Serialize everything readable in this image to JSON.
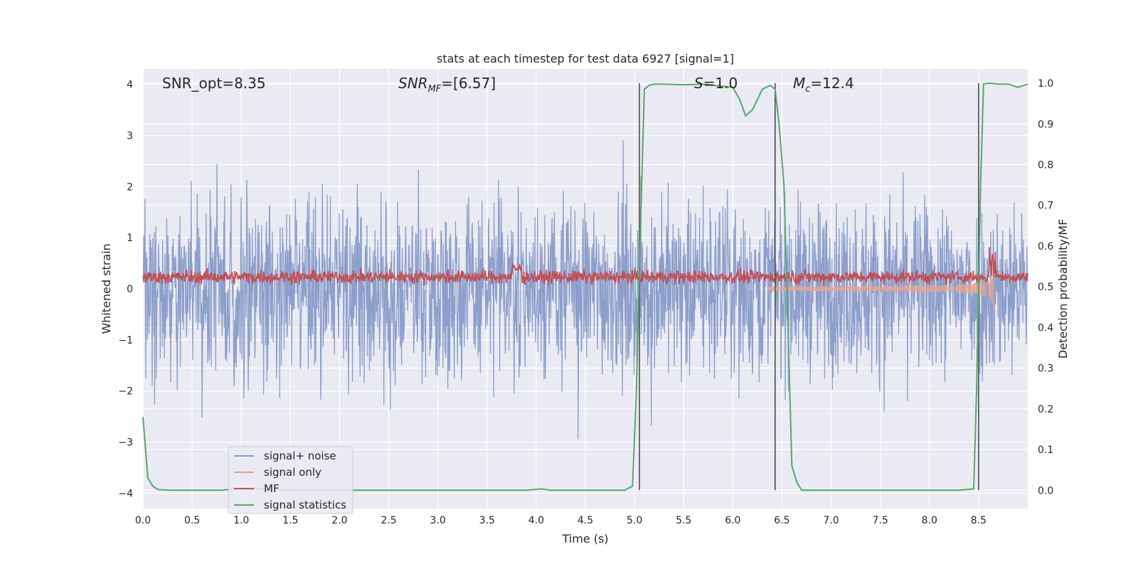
{
  "chart_data": {
    "type": "line",
    "title": "stats at each timestep for test data 6927 [signal=1]",
    "xlabel": "Time (s)",
    "ylabel": "Whitened strain",
    "y2label": "Detection probability/MF",
    "xlim": [
      0.0,
      9.0
    ],
    "ylim": [
      -4.3,
      4.3
    ],
    "y2lim": [
      -0.045,
      1.035
    ],
    "xticks": [
      0.0,
      0.5,
      1.0,
      1.5,
      2.0,
      2.5,
      3.0,
      3.5,
      4.0,
      4.5,
      5.0,
      5.5,
      6.0,
      6.5,
      7.0,
      7.5,
      8.0,
      8.5
    ],
    "xtick_labels": [
      "0.0",
      "0.5",
      "1.0",
      "1.5",
      "2.0",
      "2.5",
      "3.0",
      "3.5",
      "4.0",
      "4.5",
      "5.0",
      "5.5",
      "6.0",
      "6.5",
      "7.0",
      "7.5",
      "8.0",
      "8.5"
    ],
    "yticks": [
      4,
      3,
      2,
      1,
      0,
      -1,
      -2,
      -3,
      -4
    ],
    "ytick_labels": [
      "4",
      "3",
      "2",
      "1",
      "0",
      "−1",
      "−2",
      "−3",
      "−4"
    ],
    "y2ticks": [
      1.0,
      0.9,
      0.8,
      0.7,
      0.6,
      0.5,
      0.4,
      0.3,
      0.2,
      0.1,
      0.0
    ],
    "y2tick_labels": [
      "1.0",
      "0.9",
      "0.8",
      "0.7",
      "0.6",
      "0.5",
      "0.4",
      "0.3",
      "0.2",
      "0.1",
      "0.0"
    ],
    "annotations": {
      "snr_opt": "SNR_opt=8.35",
      "snr_mf": "=[6.57]",
      "stat": "=1.0",
      "chirp_mass": "=12.4"
    },
    "vlines_x": [
      5.05,
      6.43,
      8.5
    ],
    "series": [
      {
        "name": "signal+ noise",
        "color": "#8c9fcb",
        "axis": "left",
        "description": "whitened noise, amplitude approx ±2.5"
      },
      {
        "name": "signal only",
        "color": "#e8a58c",
        "axis": "left",
        "description": "chirp growing from 6.4 s to merger at 8.65 s, peak ~1.6"
      },
      {
        "name": "MF",
        "color": "#c44e52",
        "axis": "right",
        "description": "matched filter output ~0.5–0.55"
      },
      {
        "name": "signal statistics",
        "color": "#55a868",
        "axis": "right",
        "x": [
          0.0,
          0.05,
          0.1,
          0.15,
          0.2,
          0.3,
          0.5,
          0.8,
          1.0,
          1.5,
          2.0,
          2.5,
          3.0,
          3.5,
          3.9,
          4.05,
          4.15,
          4.5,
          4.9,
          4.98,
          5.02,
          5.05,
          5.1,
          5.15,
          5.2,
          5.3,
          5.5,
          5.7,
          5.8,
          6.0,
          6.07,
          6.13,
          6.2,
          6.3,
          6.38,
          6.43,
          6.47,
          6.52,
          6.55,
          6.6,
          6.65,
          6.7,
          7.0,
          7.5,
          8.0,
          8.3,
          8.45,
          8.48,
          8.52,
          8.55,
          8.6,
          8.7,
          8.8,
          8.9,
          9.0
        ],
        "y": [
          0.18,
          0.03,
          0.01,
          0.002,
          0.001,
          0.0,
          0.0,
          0.0,
          0.005,
          0.0,
          0.0,
          0.0,
          0.0,
          0.0,
          0.0,
          0.003,
          0.0,
          0.0,
          0.0,
          0.01,
          0.25,
          0.55,
          0.985,
          0.995,
          0.998,
          0.998,
          0.996,
          0.998,
          0.995,
          0.99,
          0.96,
          0.92,
          0.935,
          0.985,
          0.995,
          0.985,
          0.9,
          0.75,
          0.5,
          0.06,
          0.02,
          0.0,
          0.0,
          0.0,
          0.0,
          0.0,
          0.003,
          0.25,
          0.75,
          0.998,
          1.0,
          0.998,
          0.998,
          0.99,
          0.998
        ]
      }
    ]
  }
}
